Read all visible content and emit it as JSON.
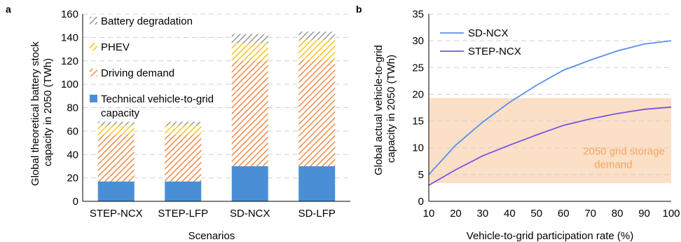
{
  "chart_data": [
    {
      "panel": "a",
      "type": "bar",
      "stacked": true,
      "categories": [
        "STEP-NCX",
        "STEP-LFP",
        "SD-NCX",
        "SD-LFP"
      ],
      "series": [
        {
          "name": "Technical vehicle-to-grid capacity",
          "values": [
            17,
            17,
            30,
            30
          ],
          "color": "#4a8fd6",
          "pattern": "solid"
        },
        {
          "name": "Driving demand",
          "values": [
            40,
            40,
            90,
            91
          ],
          "color": "#f08a45",
          "pattern": "hatch"
        },
        {
          "name": "PHEV",
          "values": [
            8,
            8,
            15,
            17
          ],
          "color": "#f5c518",
          "pattern": "hatch"
        },
        {
          "name": "Battery degradation",
          "values": [
            3,
            3,
            8,
            7
          ],
          "color": "#9a9a9a",
          "pattern": "hatch"
        }
      ],
      "xlabel": "Scenarios",
      "ylabel": "Global theoretical battery stock capacity in 2050 (TWh)",
      "ylabel_lines": [
        "Global theoretical battery stock",
        "capacity in 2050 (TWh)"
      ],
      "legend_lines": {
        "battery": "Battery degradation",
        "phev": "PHEV",
        "driving": "Driving demand",
        "v2g_1": "Technical vehicle-to-grid",
        "v2g_2": "capacity"
      },
      "ylim": [
        0,
        160
      ],
      "yticks": [
        "0",
        "20",
        "40",
        "60",
        "80",
        "100",
        "120",
        "140",
        "160"
      ],
      "grid": true
    },
    {
      "panel": "b",
      "type": "line",
      "x": [
        10,
        20,
        30,
        40,
        50,
        60,
        70,
        80,
        90,
        100
      ],
      "series": [
        {
          "name": "SD-NCX",
          "values": [
            5.0,
            10.5,
            14.8,
            18.5,
            21.7,
            24.5,
            26.4,
            28.1,
            29.4,
            30.0
          ],
          "color": "#5b8ff0"
        },
        {
          "name": "STEP-NCX",
          "values": [
            3.0,
            5.9,
            8.5,
            10.5,
            12.4,
            14.2,
            15.4,
            16.4,
            17.2,
            17.6
          ],
          "color": "#7a52e6"
        }
      ],
      "band": {
        "range": [
          3.4,
          19.3
        ],
        "color": "#fbdfc6",
        "label_lines": [
          "2050 grid storage",
          "demand"
        ],
        "label_color": "#f5a65c"
      },
      "xlabel": "Vehicle-to-grid participation rate (%)",
      "ylabel": "Global actual vehicle-to-grid capacity in 2050 (TWh)",
      "ylabel_lines": [
        "Global actual vehicle-to-grid",
        "capacity in 2050 (TWh)"
      ],
      "xlim": [
        10,
        100
      ],
      "ylim": [
        0,
        35
      ],
      "xticks": [
        "10",
        "20",
        "30",
        "40",
        "50",
        "60",
        "70",
        "80",
        "90",
        "100"
      ],
      "yticks": [
        "0",
        "5",
        "10",
        "15",
        "20",
        "25",
        "30",
        "35"
      ],
      "legend_position": "top-left",
      "grid": true
    }
  ]
}
